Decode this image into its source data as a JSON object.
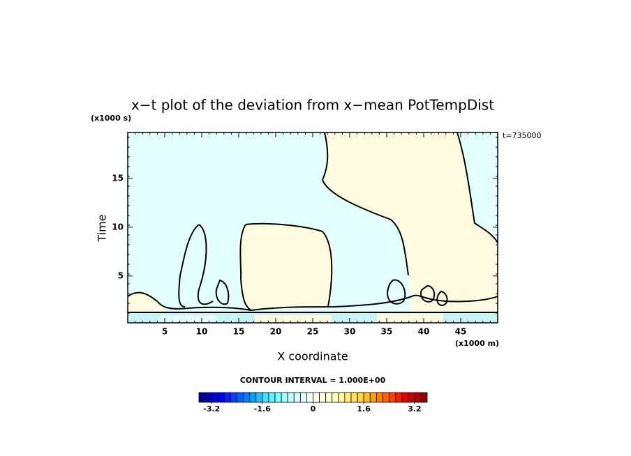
{
  "chart_data": {
    "type": "contour",
    "title": "x−t plot of the deviation from x−mean PotTempDist",
    "y_unit": "(x1000 s)",
    "x_unit": "(x1000 m)",
    "time_label": "t=735000",
    "xlabel": "X coordinate",
    "ylabel": "Time",
    "xlim": [
      0,
      50
    ],
    "xticks": [
      5,
      10,
      15,
      20,
      25,
      30,
      35,
      40,
      45
    ],
    "ylim": [
      0.2,
      19.7
    ],
    "yticks": [
      5,
      10,
      15
    ],
    "contour_interval": "CONTOUR INTERVAL = 1.000E+00",
    "colorbar": {
      "lim": [
        -3.6,
        3.6
      ],
      "ticks": [
        -3.2,
        -1.6,
        0,
        1.6,
        3.2
      ],
      "colors": [
        "#000090",
        "#0000b0",
        "#0000d0",
        "#0000f0",
        "#0020ff",
        "#0040ff",
        "#0060ff",
        "#0080ff",
        "#00a0ff",
        "#20c0ff",
        "#40e0ff",
        "#60f0ff",
        "#80ffff",
        "#a0ffff",
        "#c0ffff",
        "#d8ffff",
        "#e8ffff",
        "#f4ffff",
        "#fffff0",
        "#ffffe0",
        "#fffdd0",
        "#fffac0",
        "#fff8a0",
        "#fff080",
        "#ffe060",
        "#ffd040",
        "#ffc020",
        "#ffa000",
        "#ff8000",
        "#ff6000",
        "#ff4000",
        "#f02000",
        "#e00000",
        "#c80000",
        "#b00000",
        "#900000"
      ]
    }
  }
}
